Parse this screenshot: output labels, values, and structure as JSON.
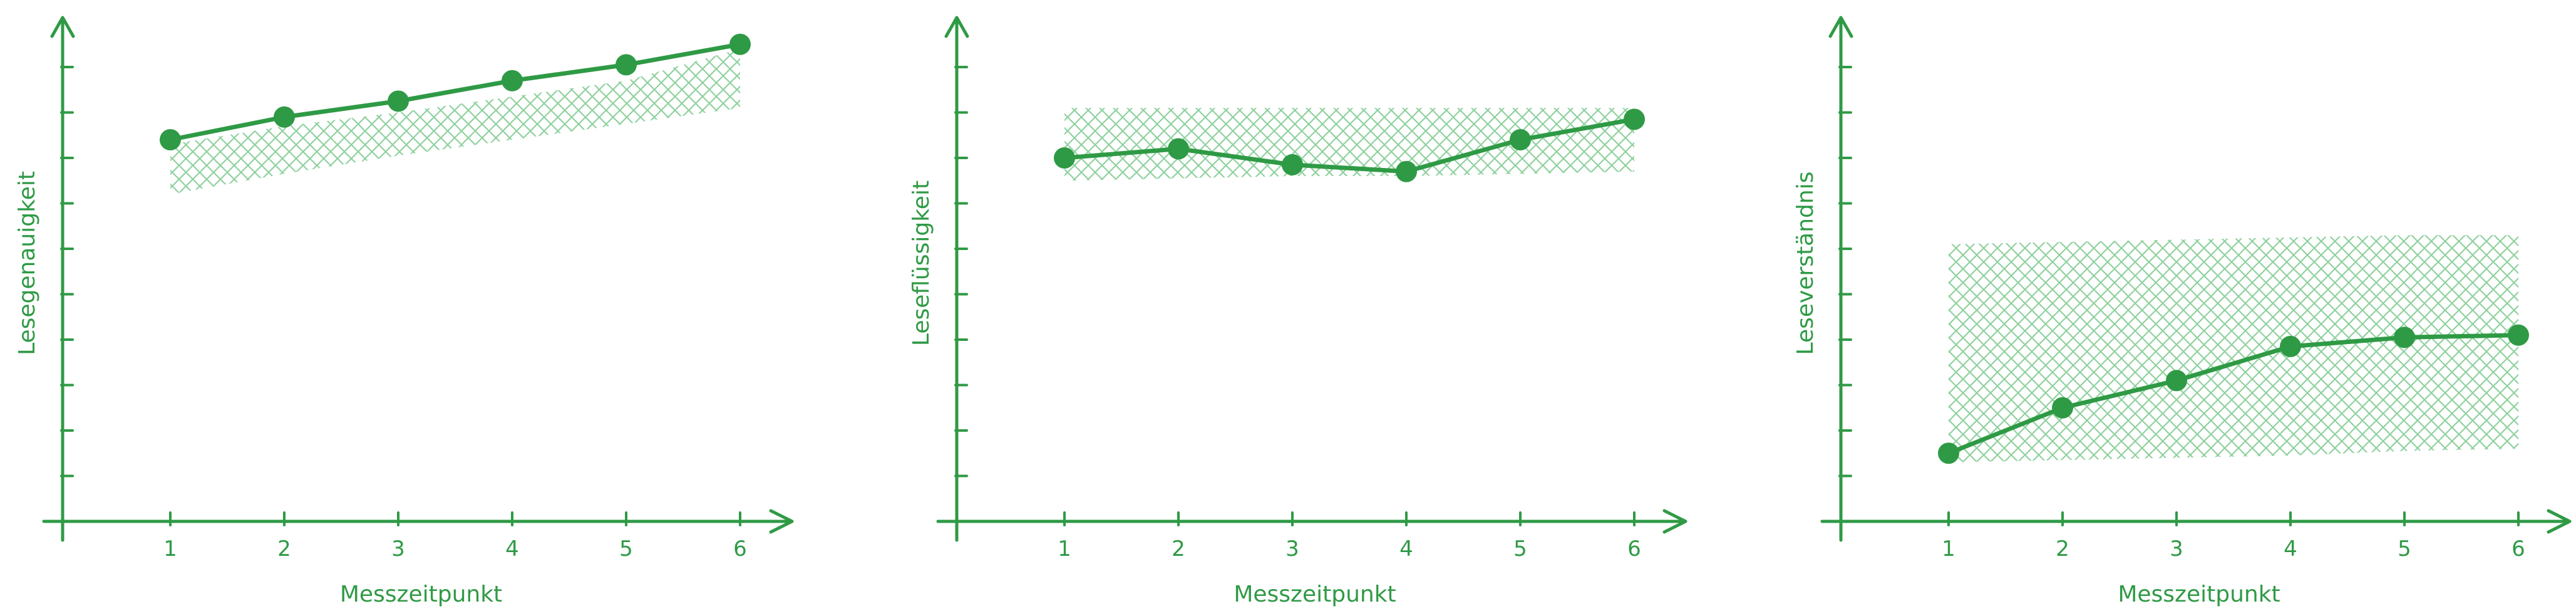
{
  "theme": {
    "accent": "#2f9a45",
    "band_color": "#8fd19e"
  },
  "chart_data": [
    {
      "type": "line",
      "ylabel": "Lesegenauigkeit",
      "xlabel": "Messzeitpunkt",
      "categories": [
        "1",
        "2",
        "3",
        "4",
        "5",
        "6"
      ],
      "x": [
        1,
        2,
        3,
        4,
        5,
        6
      ],
      "values": [
        8.4,
        8.9,
        9.25,
        9.7,
        10.05,
        10.5
      ],
      "band": {
        "lower": [
          7.2,
          7.65,
          8.05,
          8.4,
          8.75,
          9.1
        ],
        "upper": [
          8.3,
          8.7,
          9.0,
          9.35,
          9.7,
          10.4
        ]
      },
      "ylim": [
        0,
        11
      ],
      "grid": false,
      "legend": "none"
    },
    {
      "type": "line",
      "ylabel": "Leseflüssigkeit",
      "xlabel": "Messzeitpunkt",
      "categories": [
        "1",
        "2",
        "3",
        "4",
        "5",
        "6"
      ],
      "x": [
        1,
        2,
        3,
        4,
        5,
        6
      ],
      "values": [
        8.0,
        8.2,
        7.85,
        7.7,
        8.4,
        8.85
      ],
      "band": {
        "lower": [
          7.5,
          7.55,
          7.6,
          7.6,
          7.65,
          7.7
        ],
        "upper": [
          9.1,
          9.1,
          9.1,
          9.1,
          9.1,
          9.1
        ]
      },
      "ylim": [
        0,
        11
      ],
      "grid": false,
      "legend": "none"
    },
    {
      "type": "line",
      "ylabel": "Leseverständnis",
      "xlabel": "Messzeitpunkt",
      "categories": [
        "1",
        "2",
        "3",
        "4",
        "5",
        "6"
      ],
      "x": [
        1,
        2,
        3,
        4,
        5,
        6
      ],
      "values": [
        1.5,
        2.5,
        3.1,
        3.85,
        4.05,
        4.1
      ],
      "band": {
        "lower": [
          1.3,
          1.35,
          1.4,
          1.45,
          1.55,
          1.6
        ],
        "upper": [
          6.1,
          6.15,
          6.2,
          6.25,
          6.3,
          6.3
        ]
      },
      "ylim": [
        0,
        11
      ],
      "grid": false,
      "legend": "none"
    }
  ]
}
